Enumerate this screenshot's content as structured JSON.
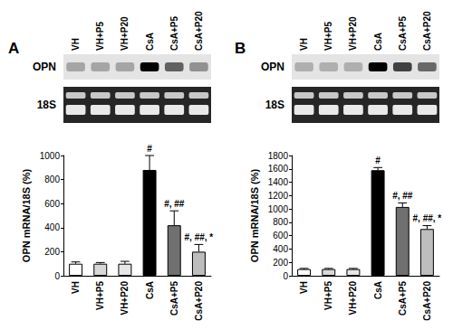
{
  "chart_data": [
    {
      "type": "bar",
      "title": "A",
      "blot_labels": [
        "OPN",
        "18S"
      ],
      "categories": [
        "VH",
        "VH+P5",
        "VH+P20",
        "CsA",
        "CsA+P5",
        "CsA+P20"
      ],
      "values": [
        100,
        100,
        100,
        880,
        420,
        200
      ],
      "errors": [
        15,
        10,
        20,
        120,
        120,
        60
      ],
      "annotations": [
        null,
        null,
        null,
        "#",
        "#, ##",
        "#, ##, *"
      ],
      "colors": [
        "#ffffff",
        "#d8d8d8",
        "#e6e6e6",
        "#000000",
        "#707070",
        "#bdbdbd"
      ],
      "ylabel": "OPN mRNA/18S (%)",
      "ylim": [
        0,
        1000
      ],
      "yticks": [
        0,
        200,
        400,
        600,
        800,
        1000
      ],
      "grid": false
    },
    {
      "type": "bar",
      "title": "B",
      "blot_labels": [
        "OPN",
        "18S"
      ],
      "categories": [
        "VH",
        "VH+P5",
        "VH+P20",
        "CsA",
        "CsA+P5",
        "CsA+P20"
      ],
      "values": [
        100,
        100,
        100,
        1580,
        1030,
        700
      ],
      "errors": [
        10,
        10,
        10,
        40,
        60,
        50
      ],
      "annotations": [
        null,
        null,
        null,
        "#",
        "#, ##",
        "#, ##, *"
      ],
      "colors": [
        "#ffffff",
        "#d8d8d8",
        "#e6e6e6",
        "#000000",
        "#707070",
        "#bdbdbd"
      ],
      "ylabel": "OPN mRNA/18S (%)",
      "ylim": [
        0,
        1800
      ],
      "yticks": [
        0,
        200,
        400,
        600,
        800,
        1000,
        1200,
        1400,
        1600,
        1800
      ],
      "grid": false
    }
  ]
}
